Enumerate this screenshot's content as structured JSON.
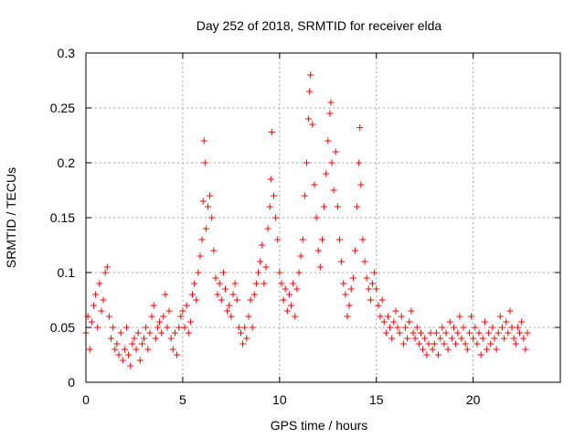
{
  "chart_data": {
    "type": "scatter",
    "title": "Day 252 of 2018, SRMTID for receiver elda",
    "xlabel": "GPS time / hours",
    "ylabel": "SRMTID / TECUs",
    "xlim": [
      0,
      24.5
    ],
    "ylim": [
      0,
      0.3
    ],
    "xticks": [
      0,
      5,
      10,
      15,
      20
    ],
    "xtick_labels": [
      "0",
      "5",
      "10",
      "15",
      "20"
    ],
    "yticks": [
      0,
      0.05,
      0.1,
      0.15,
      0.2,
      0.25,
      0.3
    ],
    "ytick_labels": [
      "0",
      "0.05",
      "0.1",
      "0.15",
      "0.2",
      "0.25",
      "0.3"
    ],
    "grid": true,
    "marker": "plus",
    "color": "#ff0000",
    "series": [
      {
        "name": "SRMTID",
        "points": [
          [
            0.0,
            0.045
          ],
          [
            0.1,
            0.06
          ],
          [
            0.2,
            0.03
          ],
          [
            0.3,
            0.055
          ],
          [
            0.4,
            0.07
          ],
          [
            0.5,
            0.08
          ],
          [
            0.6,
            0.05
          ],
          [
            0.7,
            0.09
          ],
          [
            0.8,
            0.065
          ],
          [
            0.9,
            0.075
          ],
          [
            1.0,
            0.1
          ],
          [
            1.1,
            0.105
          ],
          [
            1.2,
            0.06
          ],
          [
            1.3,
            0.04
          ],
          [
            1.4,
            0.05
          ],
          [
            1.5,
            0.03
          ],
          [
            1.6,
            0.035
          ],
          [
            1.7,
            0.025
          ],
          [
            1.8,
            0.045
          ],
          [
            1.9,
            0.02
          ],
          [
            2.0,
            0.03
          ],
          [
            2.1,
            0.05
          ],
          [
            2.2,
            0.025
          ],
          [
            2.3,
            0.015
          ],
          [
            2.4,
            0.035
          ],
          [
            2.5,
            0.04
          ],
          [
            2.6,
            0.03
          ],
          [
            2.7,
            0.045
          ],
          [
            2.8,
            0.02
          ],
          [
            2.9,
            0.035
          ],
          [
            3.0,
            0.04
          ],
          [
            3.1,
            0.05
          ],
          [
            3.2,
            0.03
          ],
          [
            3.3,
            0.045
          ],
          [
            3.4,
            0.06
          ],
          [
            3.5,
            0.07
          ],
          [
            3.6,
            0.04
          ],
          [
            3.7,
            0.05
          ],
          [
            3.8,
            0.055
          ],
          [
            3.9,
            0.045
          ],
          [
            4.0,
            0.06
          ],
          [
            4.1,
            0.08
          ],
          [
            4.2,
            0.05
          ],
          [
            4.3,
            0.065
          ],
          [
            4.4,
            0.04
          ],
          [
            4.5,
            0.03
          ],
          [
            4.6,
            0.045
          ],
          [
            4.7,
            0.025
          ],
          [
            4.8,
            0.05
          ],
          [
            4.9,
            0.06
          ],
          [
            5.0,
            0.065
          ],
          [
            5.1,
            0.05
          ],
          [
            5.2,
            0.07
          ],
          [
            5.3,
            0.045
          ],
          [
            5.4,
            0.055
          ],
          [
            5.5,
            0.08
          ],
          [
            5.6,
            0.09
          ],
          [
            5.7,
            0.075
          ],
          [
            5.8,
            0.1
          ],
          [
            5.9,
            0.115
          ],
          [
            6.0,
            0.13
          ],
          [
            6.05,
            0.165
          ],
          [
            6.1,
            0.22
          ],
          [
            6.15,
            0.2
          ],
          [
            6.2,
            0.14
          ],
          [
            6.3,
            0.16
          ],
          [
            6.4,
            0.17
          ],
          [
            6.5,
            0.15
          ],
          [
            6.6,
            0.12
          ],
          [
            6.7,
            0.095
          ],
          [
            6.8,
            0.08
          ],
          [
            6.9,
            0.09
          ],
          [
            7.0,
            0.075
          ],
          [
            7.1,
            0.1
          ],
          [
            7.2,
            0.085
          ],
          [
            7.3,
            0.065
          ],
          [
            7.4,
            0.07
          ],
          [
            7.5,
            0.06
          ],
          [
            7.6,
            0.08
          ],
          [
            7.7,
            0.09
          ],
          [
            7.8,
            0.075
          ],
          [
            7.9,
            0.05
          ],
          [
            8.0,
            0.045
          ],
          [
            8.1,
            0.035
          ],
          [
            8.2,
            0.05
          ],
          [
            8.3,
            0.04
          ],
          [
            8.4,
            0.06
          ],
          [
            8.5,
            0.075
          ],
          [
            8.6,
            0.05
          ],
          [
            8.7,
            0.08
          ],
          [
            8.8,
            0.09
          ],
          [
            8.9,
            0.1
          ],
          [
            9.0,
            0.11
          ],
          [
            9.1,
            0.125
          ],
          [
            9.2,
            0.09
          ],
          [
            9.3,
            0.105
          ],
          [
            9.4,
            0.14
          ],
          [
            9.5,
            0.16
          ],
          [
            9.55,
            0.185
          ],
          [
            9.6,
            0.228
          ],
          [
            9.7,
            0.17
          ],
          [
            9.8,
            0.15
          ],
          [
            9.9,
            0.13
          ],
          [
            10.0,
            0.1
          ],
          [
            10.1,
            0.09
          ],
          [
            10.2,
            0.075
          ],
          [
            10.3,
            0.085
          ],
          [
            10.4,
            0.065
          ],
          [
            10.5,
            0.08
          ],
          [
            10.6,
            0.07
          ],
          [
            10.7,
            0.09
          ],
          [
            10.8,
            0.06
          ],
          [
            10.9,
            0.085
          ],
          [
            11.0,
            0.1
          ],
          [
            11.1,
            0.115
          ],
          [
            11.2,
            0.13
          ],
          [
            11.3,
            0.17
          ],
          [
            11.4,
            0.2
          ],
          [
            11.5,
            0.24
          ],
          [
            11.55,
            0.265
          ],
          [
            11.6,
            0.28
          ],
          [
            11.7,
            0.235
          ],
          [
            11.8,
            0.18
          ],
          [
            11.9,
            0.15
          ],
          [
            12.0,
            0.12
          ],
          [
            12.1,
            0.105
          ],
          [
            12.2,
            0.13
          ],
          [
            12.3,
            0.16
          ],
          [
            12.4,
            0.19
          ],
          [
            12.5,
            0.22
          ],
          [
            12.6,
            0.245
          ],
          [
            12.65,
            0.255
          ],
          [
            12.7,
            0.2
          ],
          [
            12.8,
            0.175
          ],
          [
            12.9,
            0.21
          ],
          [
            13.0,
            0.16
          ],
          [
            13.1,
            0.13
          ],
          [
            13.2,
            0.11
          ],
          [
            13.3,
            0.09
          ],
          [
            13.4,
            0.08
          ],
          [
            13.5,
            0.06
          ],
          [
            13.6,
            0.07
          ],
          [
            13.7,
            0.085
          ],
          [
            13.8,
            0.095
          ],
          [
            13.9,
            0.12
          ],
          [
            14.0,
            0.16
          ],
          [
            14.1,
            0.2
          ],
          [
            14.15,
            0.232
          ],
          [
            14.2,
            0.18
          ],
          [
            14.3,
            0.13
          ],
          [
            14.4,
            0.11
          ],
          [
            14.5,
            0.095
          ],
          [
            14.6,
            0.085
          ],
          [
            14.7,
            0.075
          ],
          [
            14.8,
            0.09
          ],
          [
            14.9,
            0.1
          ],
          [
            15.0,
            0.085
          ],
          [
            15.1,
            0.07
          ],
          [
            15.2,
            0.06
          ],
          [
            15.3,
            0.075
          ],
          [
            15.4,
            0.055
          ],
          [
            15.5,
            0.045
          ],
          [
            15.6,
            0.06
          ],
          [
            15.7,
            0.05
          ],
          [
            15.8,
            0.04
          ],
          [
            15.9,
            0.055
          ],
          [
            16.0,
            0.065
          ],
          [
            16.1,
            0.05
          ],
          [
            16.2,
            0.045
          ],
          [
            16.3,
            0.06
          ],
          [
            16.4,
            0.035
          ],
          [
            16.5,
            0.05
          ],
          [
            16.6,
            0.04
          ],
          [
            16.7,
            0.055
          ],
          [
            16.8,
            0.065
          ],
          [
            16.9,
            0.045
          ],
          [
            17.0,
            0.04
          ],
          [
            17.1,
            0.05
          ],
          [
            17.2,
            0.035
          ],
          [
            17.3,
            0.045
          ],
          [
            17.4,
            0.03
          ],
          [
            17.5,
            0.04
          ],
          [
            17.6,
            0.025
          ],
          [
            17.7,
            0.035
          ],
          [
            17.8,
            0.045
          ],
          [
            17.9,
            0.03
          ],
          [
            18.0,
            0.035
          ],
          [
            18.1,
            0.045
          ],
          [
            18.2,
            0.025
          ],
          [
            18.3,
            0.04
          ],
          [
            18.4,
            0.05
          ],
          [
            18.5,
            0.035
          ],
          [
            18.6,
            0.045
          ],
          [
            18.7,
            0.03
          ],
          [
            18.8,
            0.055
          ],
          [
            18.9,
            0.04
          ],
          [
            19.0,
            0.05
          ],
          [
            19.1,
            0.035
          ],
          [
            19.2,
            0.045
          ],
          [
            19.3,
            0.06
          ],
          [
            19.4,
            0.04
          ],
          [
            19.5,
            0.05
          ],
          [
            19.6,
            0.035
          ],
          [
            19.7,
            0.03
          ],
          [
            19.8,
            0.045
          ],
          [
            19.9,
            0.06
          ],
          [
            20.0,
            0.04
          ],
          [
            20.1,
            0.05
          ],
          [
            20.2,
            0.035
          ],
          [
            20.3,
            0.045
          ],
          [
            20.4,
            0.025
          ],
          [
            20.5,
            0.04
          ],
          [
            20.6,
            0.055
          ],
          [
            20.7,
            0.03
          ],
          [
            20.8,
            0.045
          ],
          [
            20.9,
            0.035
          ],
          [
            21.0,
            0.05
          ],
          [
            21.1,
            0.04
          ],
          [
            21.2,
            0.03
          ],
          [
            21.3,
            0.045
          ],
          [
            21.4,
            0.06
          ],
          [
            21.5,
            0.05
          ],
          [
            21.6,
            0.04
          ],
          [
            21.7,
            0.055
          ],
          [
            21.8,
            0.045
          ],
          [
            21.9,
            0.065
          ],
          [
            22.0,
            0.05
          ],
          [
            22.1,
            0.04
          ],
          [
            22.2,
            0.035
          ],
          [
            22.3,
            0.05
          ],
          [
            22.4,
            0.045
          ],
          [
            22.5,
            0.055
          ],
          [
            22.6,
            0.04
          ],
          [
            22.7,
            0.03
          ],
          [
            22.8,
            0.045
          ]
        ]
      }
    ]
  }
}
